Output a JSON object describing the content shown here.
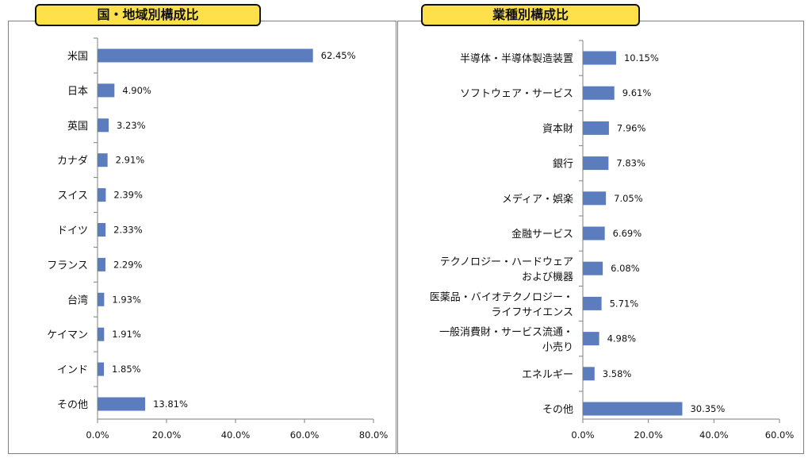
{
  "chart_data": [
    {
      "type": "bar",
      "orientation": "horizontal",
      "title": "国・地域別構成比",
      "categories": [
        "米国",
        "日本",
        "英国",
        "カナダ",
        "スイス",
        "ドイツ",
        "フランス",
        "台湾",
        "ケイマン",
        "インド",
        "その他"
      ],
      "values": [
        62.45,
        4.9,
        3.23,
        2.91,
        2.39,
        2.33,
        2.29,
        1.93,
        1.91,
        1.85,
        13.81
      ],
      "value_labels": [
        "62.45%",
        "4.90%",
        "3.23%",
        "2.91%",
        "2.39%",
        "2.33%",
        "2.29%",
        "1.93%",
        "1.91%",
        "1.85%",
        "13.81%"
      ],
      "xlim": [
        0,
        80
      ],
      "ticks": [
        "0.0%",
        "20.0%",
        "40.0%",
        "60.0%",
        "80.0%"
      ],
      "bar_color": "#5b7dbd",
      "grid": false
    },
    {
      "type": "bar",
      "orientation": "horizontal",
      "title": "業種別構成比",
      "categories": [
        "半導体・半導体製造装置",
        "ソフトウェア・サービス",
        "資本財",
        "銀行",
        "メディア・娯楽",
        "金融サービス",
        "テクノロジー・ハードウェア\nおよび機器",
        "医薬品・バイオテクノロジー・\nライフサイエンス",
        "一般消費財・サービス流通・\n小売り",
        "エネルギー",
        "その他"
      ],
      "values": [
        10.15,
        9.61,
        7.96,
        7.83,
        7.05,
        6.69,
        6.08,
        5.71,
        4.98,
        3.58,
        30.35
      ],
      "value_labels": [
        "10.15%",
        "9.61%",
        "7.96%",
        "7.83%",
        "7.05%",
        "6.69%",
        "6.08%",
        "5.71%",
        "4.98%",
        "3.58%",
        "30.35%"
      ],
      "xlim": [
        0,
        60
      ],
      "ticks": [
        "0.0%",
        "20.0%",
        "40.0%",
        "60.0%"
      ],
      "bar_color": "#5b7dbd",
      "grid": false
    }
  ]
}
